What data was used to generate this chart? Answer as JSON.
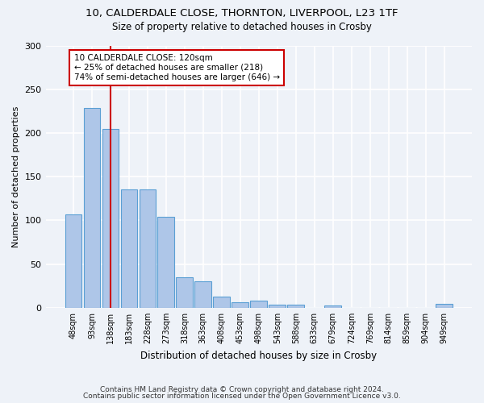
{
  "title1": "10, CALDERDALE CLOSE, THORNTON, LIVERPOOL, L23 1TF",
  "title2": "Size of property relative to detached houses in Crosby",
  "xlabel": "Distribution of detached houses by size in Crosby",
  "ylabel": "Number of detached properties",
  "categories": [
    "48sqm",
    "93sqm",
    "138sqm",
    "183sqm",
    "228sqm",
    "273sqm",
    "318sqm",
    "363sqm",
    "408sqm",
    "453sqm",
    "498sqm",
    "543sqm",
    "588sqm",
    "633sqm",
    "679sqm",
    "724sqm",
    "769sqm",
    "814sqm",
    "859sqm",
    "904sqm",
    "949sqm"
  ],
  "values": [
    107,
    229,
    205,
    135,
    135,
    104,
    35,
    30,
    13,
    6,
    8,
    4,
    4,
    0,
    3,
    0,
    0,
    0,
    0,
    0,
    5
  ],
  "bar_color": "#aec6e8",
  "bar_edge_color": "#5a9fd4",
  "vline_x": 2.0,
  "vline_color": "#cc0000",
  "annotation_text": "10 CALDERDALE CLOSE: 120sqm\n← 25% of detached houses are smaller (218)\n74% of semi-detached houses are larger (646) →",
  "annotation_box_color": "#ffffff",
  "annotation_box_edge": "#cc0000",
  "ylim": [
    0,
    300
  ],
  "yticks": [
    0,
    50,
    100,
    150,
    200,
    250,
    300
  ],
  "background_color": "#eef2f8",
  "grid_color": "#ffffff",
  "footer1": "Contains HM Land Registry data © Crown copyright and database right 2024.",
  "footer2": "Contains public sector information licensed under the Open Government Licence v3.0."
}
